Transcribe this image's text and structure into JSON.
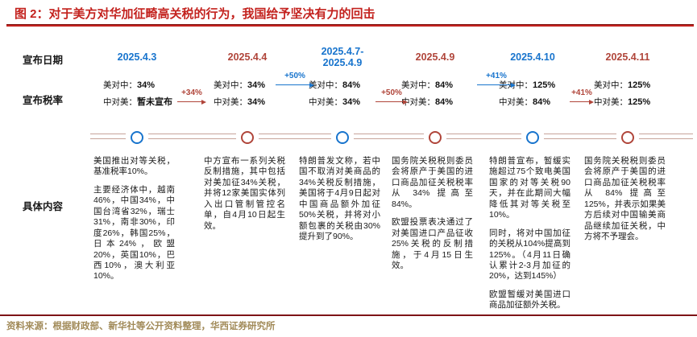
{
  "title": "图 2：对于美方对华加征畸高关税的行为，我国给予坚决有力的回击",
  "row_labels": {
    "date": "宣布日期",
    "rate": "宣布税率",
    "content": "具体内容"
  },
  "rate_labels": {
    "us_on_china": "美对中：",
    "china_on_us": "中对美："
  },
  "colors": {
    "us_blue": "#1874cd",
    "china_red": "#b0453a",
    "title_red": "#c3221e",
    "timeline_tan": "#c7a49a",
    "source_tan": "#a18a58",
    "rule_dark_red": "#7e1416"
  },
  "columns": [
    {
      "date": "2025.4.3",
      "accent": "blue",
      "us_rate": "34%",
      "cn_rate": "暂未宣布",
      "content": [
        "美国推出对等关税，基准税率10%。",
        "主要经济体中，越南46%，中国34%，中国台湾省32%，瑞士31%，南非30%，印度26%，韩国25%，日本24%，欧盟20%，英国10%，巴西10%，澳大利亚10%。"
      ]
    },
    {
      "date": "2025.4.4",
      "accent": "red",
      "us_rate": "34%",
      "cn_rate": "34%",
      "content": [
        "中方宣布一系列关税反制措施，其中包括对美加征34%关税，并将12家美国实体列入出口管制管控名单，自4月10日起生效。"
      ]
    },
    {
      "date": "2025.4.7-\n2025.4.9",
      "accent": "blue",
      "us_rate": "84%",
      "cn_rate": "34%",
      "content": [
        "特朗普发文称，若中国不取消对美商品的34%关税反制措施，美国将于4月9日起对中国商品额外加征50%关税，并将对小额包裹的关税由30%提升到了90%。"
      ]
    },
    {
      "date": "2025.4.9",
      "accent": "red",
      "us_rate": "84%",
      "cn_rate": "84%",
      "content": [
        "国务院关税税则委员会将原产于美国的进口商品加征关税税率从 34% 提高至 84%。",
        "欧盟投票表决通过了对美国进口产品征收25%关税的反制措施，于4月15日生效。"
      ]
    },
    {
      "date": "2025.4.10",
      "accent": "blue",
      "us_rate": "125%",
      "cn_rate": "84%",
      "content": [
        "特朗普宣布，暂缓实施超过75个致电美国国家的对等关税90天，并在此期间大幅降低其对等关税至10%。",
        "同时，将对中国加征的关税从104%提高到125%。（4月11日确认累计2-3月加征的20%，达到145%）",
        "欧盟暂缓对美国进口商品加征额外关税。"
      ]
    },
    {
      "date": "2025.4.11",
      "accent": "red",
      "us_rate": "125%",
      "cn_rate": "125%",
      "content": [
        "国务院关税税则委员会将原产于美国的进口商品加征关税税率从 84% 提高至125%，并表示如果美方后续对中国输美商品继续加征关税，中方将不予理会。"
      ]
    }
  ],
  "arrows": [
    {
      "label": "+34%",
      "accent": "red",
      "row": "cn"
    },
    {
      "label": "+50%",
      "accent": "blue",
      "row": "us"
    },
    {
      "label": "+50%",
      "accent": "red",
      "row": "cn"
    },
    {
      "label": "+41%",
      "accent": "blue",
      "row": "us"
    },
    {
      "label": "+41%",
      "accent": "red",
      "row": "cn"
    }
  ],
  "source": "资料来源：根据财政部、新华社等公开资料整理，华西证券研究所"
}
